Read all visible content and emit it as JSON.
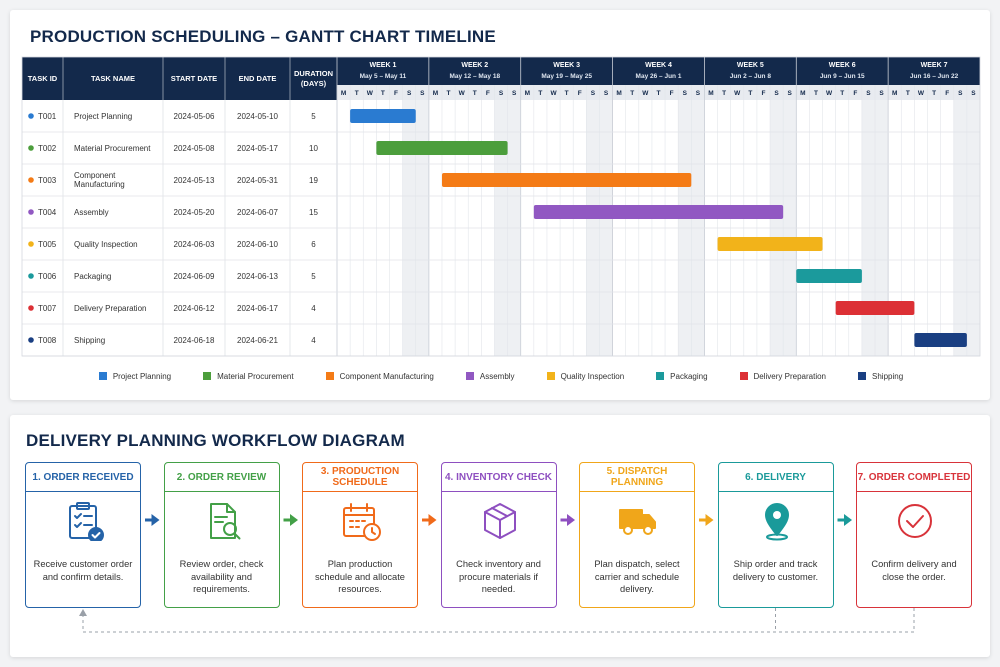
{
  "gantt": {
    "title": "PRODUCTION SCHEDULING – GANTT CHART TIMELINE",
    "columns": [
      "TASK ID",
      "TASK NAME",
      "START DATE",
      "END DATE",
      "DURATION (DAYS)"
    ],
    "weeks": [
      {
        "label": "WEEK 1",
        "range": "May 5 – May 11"
      },
      {
        "label": "WEEK 2",
        "range": "May 12 – May 18"
      },
      {
        "label": "WEEK 3",
        "range": "May 19 – May 25"
      },
      {
        "label": "WEEK 4",
        "range": "May 26 – Jun 1"
      },
      {
        "label": "WEEK 5",
        "range": "Jun 2 – Jun 8"
      },
      {
        "label": "WEEK 6",
        "range": "Jun 9 – Jun 15"
      },
      {
        "label": "WEEK 7",
        "range": "Jun 16 – Jun 22"
      }
    ],
    "day_letters": [
      "M",
      "T",
      "W",
      "T",
      "F",
      "S",
      "S"
    ],
    "tasks": [
      {
        "id": "T001",
        "name": "Project Planning",
        "start": "2024-05-06",
        "end": "2024-05-10",
        "duration": 5,
        "color": "#2a7bd1"
      },
      {
        "id": "T002",
        "name": "Material Procurement",
        "start": "2024-05-08",
        "end": "2024-05-17",
        "duration": 10,
        "color": "#4c9e3c"
      },
      {
        "id": "T003",
        "name": "Component Manufacturing",
        "start": "2024-05-13",
        "end": "2024-05-31",
        "duration": 19,
        "color": "#f47b16"
      },
      {
        "id": "T004",
        "name": "Assembly",
        "start": "2024-05-20",
        "end": "2024-06-07",
        "duration": 15,
        "color": "#9158c2"
      },
      {
        "id": "T005",
        "name": "Quality Inspection",
        "start": "2024-06-03",
        "end": "2024-06-10",
        "duration": 6,
        "color": "#f2b31a"
      },
      {
        "id": "T006",
        "name": "Packaging",
        "start": "2024-06-09",
        "end": "2024-06-13",
        "duration": 5,
        "color": "#1b9a9c"
      },
      {
        "id": "T007",
        "name": "Delivery Preparation",
        "start": "2024-06-12",
        "end": "2024-06-17",
        "duration": 4,
        "color": "#dc3035"
      },
      {
        "id": "T008",
        "name": "Shipping",
        "start": "2024-06-18",
        "end": "2024-06-21",
        "duration": 4,
        "color": "#1a3f82"
      }
    ]
  },
  "workflow": {
    "title": "DELIVERY PLANNING WORKFLOW DIAGRAM",
    "steps": [
      {
        "title": "1. ORDER RECEIVED",
        "text": "Receive customer order and confirm details.",
        "color": "#2563a8"
      },
      {
        "title": "2. ORDER REVIEW",
        "text": "Review order, check availability and requirements.",
        "color": "#43a047"
      },
      {
        "title": "3. PRODUCTION SCHEDULE",
        "text": "Plan production schedule and allocate resources.",
        "color": "#f06a1a"
      },
      {
        "title": "4. INVENTORY CHECK",
        "text": "Check inventory and procure materials if needed.",
        "color": "#8e4fc0"
      },
      {
        "title": "5. DISPATCH PLANNING",
        "text": "Plan dispatch, select carrier and schedule delivery.",
        "color": "#f0a61a"
      },
      {
        "title": "6. DELIVERY",
        "text": "Ship order and track delivery to customer.",
        "color": "#1a9a9a"
      },
      {
        "title": "7. ORDER COMPLETED",
        "text": "Confirm delivery and close the order.",
        "color": "#d8333a"
      }
    ]
  }
}
